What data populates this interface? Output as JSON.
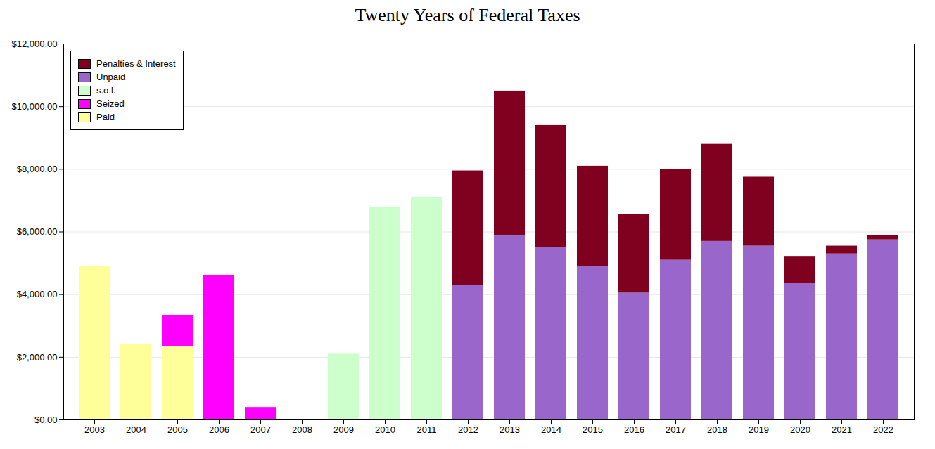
{
  "chart_data": {
    "type": "bar",
    "stacked": true,
    "title": "Twenty Years of Federal Taxes",
    "categories": [
      "2003",
      "2004",
      "2005",
      "2006",
      "2007",
      "2008",
      "2009",
      "2010",
      "2011",
      "2012",
      "2013",
      "2014",
      "2015",
      "2016",
      "2017",
      "2018",
      "2019",
      "2020",
      "2021",
      "2022"
    ],
    "series": [
      {
        "name": "Paid",
        "color": "#ffff99",
        "values": [
          4900,
          2400,
          2350,
          0,
          0,
          0,
          0,
          0,
          0,
          0,
          0,
          0,
          0,
          0,
          0,
          0,
          0,
          0,
          0,
          0
        ]
      },
      {
        "name": "Seized",
        "color": "#ff00ff",
        "values": [
          0,
          0,
          980,
          4600,
          400,
          0,
          0,
          0,
          0,
          0,
          0,
          0,
          0,
          0,
          0,
          0,
          0,
          0,
          0,
          0
        ]
      },
      {
        "name": "s.o.l.",
        "color": "#ccffcc",
        "values": [
          0,
          0,
          0,
          0,
          0,
          0,
          2100,
          6800,
          7100,
          0,
          0,
          0,
          0,
          0,
          0,
          0,
          0,
          0,
          0,
          0
        ]
      },
      {
        "name": "Unpaid",
        "color": "#9966cc",
        "values": [
          0,
          0,
          0,
          0,
          0,
          0,
          0,
          0,
          0,
          4300,
          5900,
          5500,
          4900,
          4050,
          5100,
          5700,
          5550,
          4350,
          5300,
          5750
        ]
      },
      {
        "name": "Penalties & Interest",
        "color": "#800020",
        "values": [
          0,
          0,
          0,
          0,
          0,
          0,
          0,
          0,
          0,
          3650,
          4600,
          3900,
          3200,
          2500,
          2900,
          3100,
          2200,
          850,
          250,
          150
        ]
      }
    ],
    "ylim": [
      0,
      12000
    ],
    "yticks": [
      {
        "value": 0,
        "label": "$0.00"
      },
      {
        "value": 2000,
        "label": "$2,000.00"
      },
      {
        "value": 4000,
        "label": "$4,000.00"
      },
      {
        "value": 6000,
        "label": "$6,000.00"
      },
      {
        "value": 8000,
        "label": "$8,000.00"
      },
      {
        "value": 10000,
        "label": "$10,000.00"
      },
      {
        "value": 12000,
        "label": "$12,000.00"
      }
    ],
    "grid": true,
    "legend": "upper left"
  }
}
